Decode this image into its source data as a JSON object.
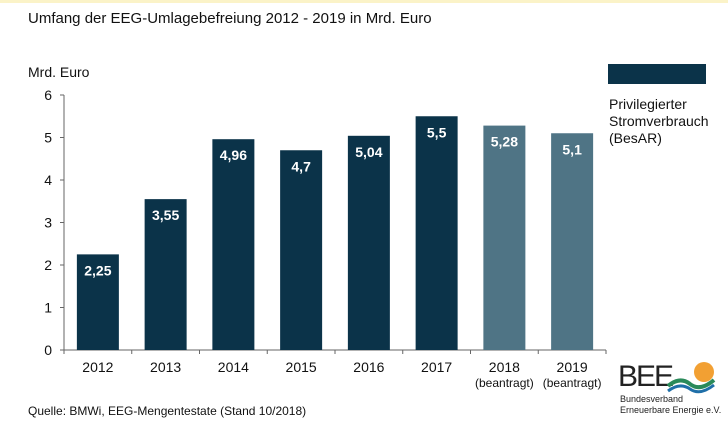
{
  "chart_data": {
    "type": "bar",
    "title": "Umfang  der EEG-Umlagebefreiung  2012 - 2019 in Mrd. Euro",
    "ylabel": "Mrd. Euro",
    "xlabel": "",
    "ylim": [
      0,
      6
    ],
    "yticks": [
      0,
      1,
      2,
      3,
      4,
      5,
      6
    ],
    "categories": [
      "2012",
      "2013",
      "2014",
      "2015",
      "2016",
      "2017",
      "2018",
      "2019"
    ],
    "category_sublabels": [
      "",
      "",
      "",
      "",
      "",
      "",
      "(beantragt)",
      "(beantragt)"
    ],
    "values": [
      2.25,
      3.55,
      4.96,
      4.7,
      5.04,
      5.5,
      5.28,
      5.1
    ],
    "data_labels": [
      "2,25",
      "3,55",
      "4,96",
      "4,7",
      "5,04",
      "5,5",
      "5,28",
      "5,1"
    ],
    "bar_colors": [
      "#0b3349",
      "#0b3349",
      "#0b3349",
      "#0b3349",
      "#0b3349",
      "#0b3349",
      "#4f7485",
      "#4f7485"
    ],
    "legend": {
      "label": "Privilegierter Stromverbrauch (BesAR)",
      "color": "#0b3349",
      "placement": "right"
    },
    "grid": false
  },
  "source": "Quelle:  BMWi, EEG-Mengentestate  (Stand 10/2018)",
  "logo": {
    "name": "BEE",
    "subtitle_1": "Bundesverband",
    "subtitle_2": "Erneuerbare Energie e.V."
  }
}
